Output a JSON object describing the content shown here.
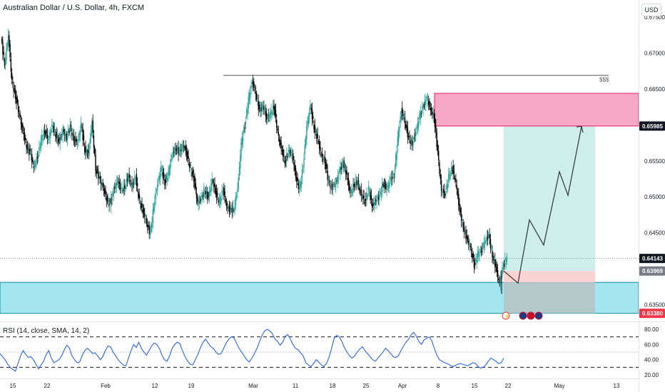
{
  "title": "Australian Dollar / U.S. Dollar, 4h, FXCM",
  "currency_label": "USD",
  "dollar_label": "$$$",
  "rsi_title": "RSI (14, close, SMA, 14, 2)",
  "colors": {
    "up": "#26a69a",
    "down": "#000000",
    "supply_zone": "#f7a8c4",
    "supply_border": "#e91e63",
    "demand_zone": "#a4e6f0",
    "demand_border": "#0b8c9a",
    "target_zone": "#cdeeea",
    "stop_zone": "#fbd3d3",
    "stop_lower": "#b6c2c2",
    "rsi_line": "#2962ff",
    "label_dark": "#131722",
    "label_gray": "#787b86",
    "label_red": "#f23645"
  },
  "chart_data": [
    {
      "type": "line",
      "subtype": "candlestick",
      "title": "Australian Dollar / U.S. Dollar, 4h, FXCM",
      "price_range": [
        0.632,
        0.676
      ],
      "y_ticks": [
        "0.67500",
        "0.67000",
        "0.66500",
        "0.65500",
        "0.65000",
        "0.64500",
        "0.63500"
      ],
      "x_tick_labels": [
        "15",
        "22",
        "Feb",
        "12",
        "19",
        "Mar",
        "11",
        "18",
        "25",
        "Apr",
        "8",
        "15",
        "22",
        "May",
        "13"
      ],
      "price_labels": [
        {
          "value": "0.65985",
          "style": "dark"
        },
        {
          "value": "0.64143",
          "style": "dark"
        },
        {
          "value": "0.63969",
          "style": "gray"
        },
        {
          "value": "0.63380",
          "style": "red"
        }
      ],
      "close_path": [
        0.672,
        0.6685,
        0.6725,
        0.666,
        0.664,
        0.6615,
        0.659,
        0.6572,
        0.656,
        0.6542,
        0.6555,
        0.6578,
        0.6592,
        0.658,
        0.6598,
        0.6588,
        0.6576,
        0.6592,
        0.6582,
        0.6597,
        0.658,
        0.6575,
        0.66,
        0.6566,
        0.656,
        0.6603,
        0.654,
        0.6525,
        0.6514,
        0.6497,
        0.649,
        0.651,
        0.6524,
        0.6509,
        0.6515,
        0.6528,
        0.6515,
        0.6528,
        0.6494,
        0.648,
        0.6465,
        0.6447,
        0.649,
        0.6517,
        0.654,
        0.652,
        0.6533,
        0.6558,
        0.657,
        0.656,
        0.6574,
        0.656,
        0.654,
        0.6525,
        0.6492,
        0.6496,
        0.6511,
        0.6497,
        0.6525,
        0.6506,
        0.6492,
        0.651,
        0.6488,
        0.648,
        0.6485,
        0.651,
        0.6574,
        0.66,
        0.6635,
        0.666,
        0.6645,
        0.6618,
        0.6628,
        0.6608,
        0.6615,
        0.6626,
        0.659,
        0.6566,
        0.655,
        0.6562,
        0.656,
        0.6528,
        0.651,
        0.6542,
        0.6598,
        0.6625,
        0.6598,
        0.6579,
        0.6558,
        0.655,
        0.652,
        0.6512,
        0.652,
        0.6535,
        0.6548,
        0.6529,
        0.6504,
        0.6518,
        0.652,
        0.6502,
        0.6494,
        0.651,
        0.6488,
        0.6495,
        0.65,
        0.652,
        0.651,
        0.6525,
        0.653,
        0.658,
        0.662,
        0.6605,
        0.658,
        0.6575,
        0.659,
        0.6612,
        0.6625,
        0.6638,
        0.662,
        0.6613,
        0.656,
        0.651,
        0.6503,
        0.6528,
        0.654,
        0.652,
        0.648,
        0.646,
        0.644,
        0.643,
        0.6405,
        0.642,
        0.6425,
        0.644,
        0.6445,
        0.642,
        0.64,
        0.638,
        0.6405,
        0.6414
      ],
      "annotations": [
        {
          "type": "horizontal_line",
          "level": 0.6669,
          "label": "$$$"
        },
        {
          "type": "zone",
          "name": "supply",
          "top": 0.6644,
          "bottom": 0.65985
        },
        {
          "type": "zone",
          "name": "demand",
          "top": 0.6381,
          "bottom": 0.6338
        },
        {
          "type": "position",
          "entry": 0.63969,
          "target": 0.65985,
          "stop": 0.6338
        },
        {
          "type": "projection",
          "path": [
            0.63969,
            0.638,
            0.6468,
            0.6433,
            0.6535,
            0.6502,
            0.6598
          ]
        }
      ]
    },
    {
      "type": "line",
      "title": "RSI (14, close, SMA, 14, 2)",
      "ylim": [
        15,
        85
      ],
      "y_ticks": [
        "80.00",
        "60.00",
        "40.00",
        "20.00"
      ],
      "levels": [
        70,
        50,
        30
      ],
      "values": [
        48,
        44,
        40,
        34,
        30,
        27,
        25,
        35,
        45,
        52,
        47,
        43,
        44,
        40,
        34,
        28,
        33,
        38,
        47,
        52,
        42,
        36,
        38,
        40,
        45,
        53,
        59,
        55,
        45,
        40,
        36,
        37,
        46,
        52,
        55,
        52,
        48,
        49,
        45,
        40,
        44,
        52,
        58,
        57,
        50,
        45,
        40,
        36,
        33,
        32,
        42,
        52,
        60,
        56,
        63,
        55,
        50,
        46,
        52,
        58,
        62,
        60,
        55,
        46,
        40,
        38,
        45,
        55,
        60,
        63,
        61,
        52,
        44,
        38,
        34,
        33,
        40,
        47,
        56,
        63,
        67,
        62,
        57,
        55,
        50,
        47,
        48,
        55,
        62,
        67,
        70,
        69,
        62,
        55,
        50,
        45,
        40,
        37,
        42,
        48,
        55,
        64,
        72,
        78,
        80,
        78,
        74,
        67,
        64,
        59,
        63,
        71,
        73,
        67,
        60,
        55,
        53,
        49,
        45,
        36,
        33,
        31,
        35,
        40,
        37,
        33,
        31,
        35,
        43,
        55,
        68,
        72,
        70,
        64,
        56,
        50,
        45,
        42,
        45,
        50,
        54,
        57,
        52,
        48,
        44,
        40,
        38,
        42,
        46,
        50,
        55,
        52,
        48,
        44,
        43,
        45,
        52,
        58,
        63,
        67,
        73,
        76,
        71,
        64,
        60,
        66,
        68,
        70,
        65,
        55,
        46,
        40,
        38,
        36,
        35,
        33,
        31,
        32,
        34,
        35,
        34,
        33,
        32,
        34,
        36,
        35,
        31,
        29,
        30,
        33,
        38,
        42,
        40,
        38,
        35,
        36,
        42
      ]
    }
  ]
}
